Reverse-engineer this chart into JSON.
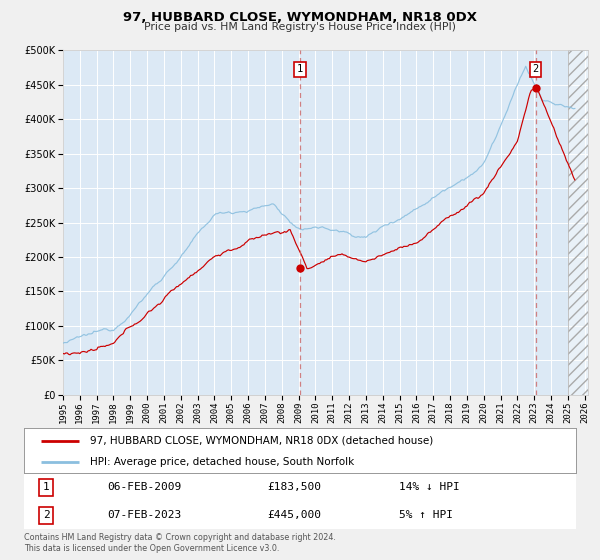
{
  "title": "97, HUBBARD CLOSE, WYMONDHAM, NR18 0DX",
  "subtitle": "Price paid vs. HM Land Registry's House Price Index (HPI)",
  "legend_line1": "97, HUBBARD CLOSE, WYMONDHAM, NR18 0DX (detached house)",
  "legend_line2": "HPI: Average price, detached house, South Norfolk",
  "annotation1_label": "1",
  "annotation1_date": "06-FEB-2009",
  "annotation1_price": "£183,500",
  "annotation1_hpi": "14% ↓ HPI",
  "annotation2_label": "2",
  "annotation2_date": "07-FEB-2023",
  "annotation2_price": "£445,000",
  "annotation2_hpi": "5% ↑ HPI",
  "footer": "Contains HM Land Registry data © Crown copyright and database right 2024.\nThis data is licensed under the Open Government Licence v3.0.",
  "hpi_color": "#8bbfdf",
  "price_color": "#cc0000",
  "plot_bg": "#dce9f5",
  "outer_bg": "#f0f0f0",
  "grid_color": "#ffffff",
  "annotation_vline_color": "#cc6666",
  "ylim_min": 0,
  "ylim_max": 500000,
  "yticks": [
    0,
    50000,
    100000,
    150000,
    200000,
    250000,
    300000,
    350000,
    400000,
    450000,
    500000
  ],
  "sale1_x": 2009.09,
  "sale1_y": 183500,
  "sale2_x": 2023.09,
  "sale2_y": 445000,
  "hatch_start": 2025.0,
  "xlim_min": 1995,
  "xlim_max": 2026.2
}
